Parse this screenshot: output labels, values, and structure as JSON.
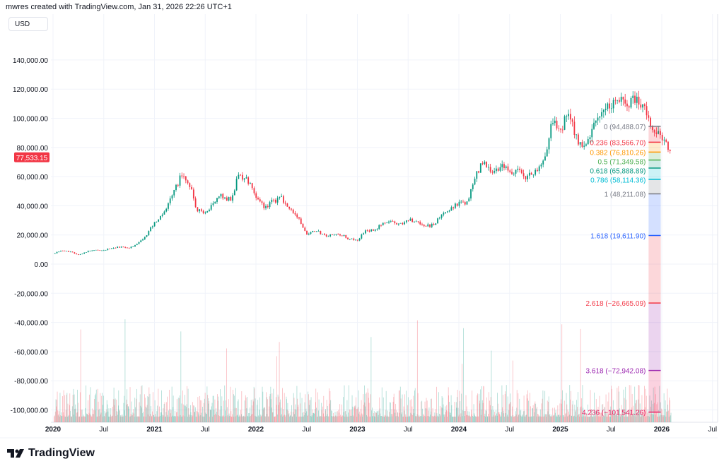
{
  "header": {
    "attribution": "mwres created with TradingView.com, Jan 31, 2026 22:26 UTC+1",
    "currency": "USD"
  },
  "footer": {
    "logo_text": "TradingView"
  },
  "colors": {
    "up": "#089981",
    "down": "#f23645",
    "grid": "#f0f3fa",
    "axis_text": "#131722"
  },
  "chart_data": {
    "type": "candlestick",
    "title": "",
    "current_price": "77,533.15",
    "y_ticks": [
      "140,000.00",
      "120,000.00",
      "100,000.00",
      "80,000.00",
      "60,000.00",
      "40,000.00",
      "20,000.00",
      "0.00",
      "-20,000.00",
      "-40,000.00",
      "-60,000.00",
      "-80,000.00",
      "-100,000.00"
    ],
    "y_tick_values": [
      140000,
      120000,
      100000,
      80000,
      60000,
      40000,
      20000,
      0,
      -20000,
      -40000,
      -60000,
      -80000,
      -100000
    ],
    "x_ticks": [
      {
        "label": "2020",
        "date": 2020.0
      },
      {
        "label": "Jul",
        "date": 2020.5
      },
      {
        "label": "2021",
        "date": 2021.0
      },
      {
        "label": "Jul",
        "date": 2021.5
      },
      {
        "label": "2022",
        "date": 2022.0
      },
      {
        "label": "Jul",
        "date": 2022.5
      },
      {
        "label": "2023",
        "date": 2023.0
      },
      {
        "label": "Jul",
        "date": 2023.5
      },
      {
        "label": "2024",
        "date": 2024.0
      },
      {
        "label": "Jul",
        "date": 2024.5
      },
      {
        "label": "2025",
        "date": 2025.0
      },
      {
        "label": "Jul",
        "date": 2025.5
      },
      {
        "label": "2026",
        "date": 2026.0
      },
      {
        "label": "Jul",
        "date": 2026.5
      }
    ],
    "monthly_close_start": "2020-01",
    "monthly_close": [
      7200,
      9350,
      8600,
      6400,
      8600,
      9450,
      9140,
      11300,
      11650,
      10780,
      13800,
      19700,
      29000,
      33100,
      45100,
      58800,
      57700,
      37300,
      35000,
      41500,
      47100,
      43800,
      61300,
      57000,
      46300,
      38500,
      43200,
      45500,
      37700,
      31800,
      19900,
      23300,
      20000,
      19400,
      20500,
      17200,
      16550,
      23100,
      23150,
      28500,
      29250,
      27200,
      30500,
      29200,
      25900,
      26970,
      34600,
      37700,
      42300,
      42600,
      61200,
      71300,
      60600,
      67500,
      62700,
      64600,
      59000,
      63300,
      70200,
      96400,
      93400,
      102400,
      84300,
      82500,
      94200,
      104600,
      107200,
      115700,
      108200,
      114000,
      109500,
      90400,
      87500,
      77533
    ],
    "fibonacci": {
      "levels": [
        {
          "level": "0",
          "price": 94488.07,
          "label": "0 (94,488.07)",
          "color": "#787b86"
        },
        {
          "level": "0.236",
          "price": 83566.7,
          "label": "0.236 (83,566.70)",
          "color": "#f23645"
        },
        {
          "level": "0.382",
          "price": 76810.26,
          "label": "0.382 (76,810.26)",
          "color": "#ff9800"
        },
        {
          "level": "0.5",
          "price": 71349.58,
          "label": "0.5 (71,349.58)",
          "color": "#4caf50"
        },
        {
          "level": "0.618",
          "price": 65888.89,
          "label": "0.618 (65,888.89)",
          "color": "#089981"
        },
        {
          "level": "0.786",
          "price": 58114.36,
          "label": "0.786 (58,114.36)",
          "color": "#00bcd4"
        },
        {
          "level": "1",
          "price": 48211.08,
          "label": "1 (48,211.08)",
          "color": "#787b86"
        },
        {
          "level": "1.618",
          "price": 19611.9,
          "label": "1.618 (19,611.90)",
          "color": "#2962ff"
        },
        {
          "level": "2.618",
          "price": -26665.09,
          "label": "2.618 (−26,665.09)",
          "color": "#f23645"
        },
        {
          "level": "3.618",
          "price": -72942.08,
          "label": "3.618 (−72,942.08)",
          "color": "#9c27b0"
        },
        {
          "level": "4.236",
          "price": -101541.26,
          "label": "4.236 (−101,541.26)",
          "color": "#e91e63"
        }
      ],
      "start_date": 2025.87,
      "end_date": 2025.99
    }
  }
}
